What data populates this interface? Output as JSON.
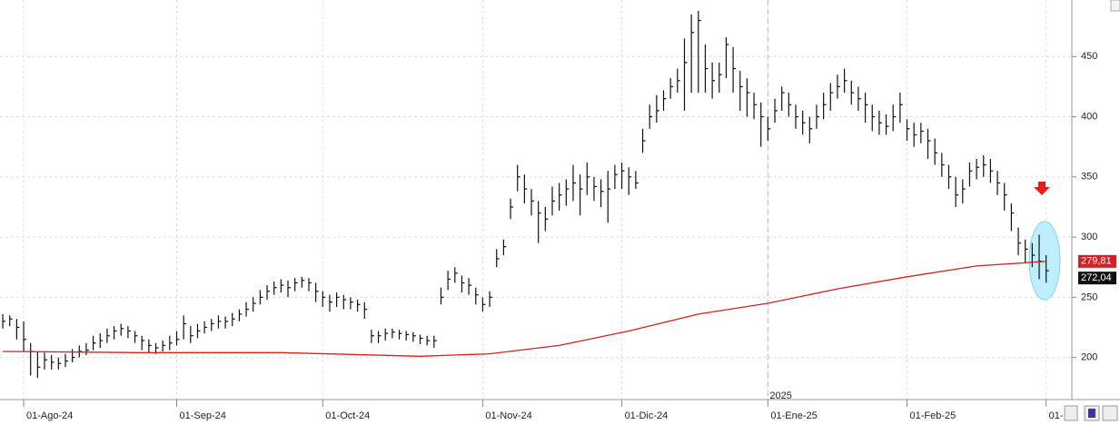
{
  "chart_data": {
    "type": "ohlc",
    "xlim": [
      -0.4,
      153.7
    ],
    "ylim": [
      165,
      497
    ],
    "yticks": [
      200,
      250,
      300,
      350,
      400,
      450
    ],
    "xticks": [
      {
        "value": 3,
        "label": "01-Ago-24"
      },
      {
        "value": 25,
        "label": "01-Sep-24"
      },
      {
        "value": 46,
        "label": "01-Oct-24"
      },
      {
        "value": 69,
        "label": "01-Nov-24"
      },
      {
        "value": 89,
        "label": "01-Dic-24"
      },
      {
        "value": 110,
        "label": "01-Ene-25"
      },
      {
        "value": 130,
        "label": "01-Feb-25"
      },
      {
        "value": 150,
        "label": "01-"
      }
    ],
    "year_marker": {
      "value": 110,
      "label": "2025"
    },
    "grid": true,
    "color": "#111111",
    "high": [
      236,
      235,
      232,
      230,
      212,
      205,
      204,
      202,
      200,
      203,
      207,
      210,
      212,
      218,
      220,
      224,
      226,
      228,
      226,
      222,
      218,
      215,
      212,
      214,
      218,
      222,
      235,
      226,
      228,
      230,
      232,
      235,
      234,
      237,
      240,
      246,
      250,
      256,
      260,
      263,
      265,
      264,
      266,
      267,
      266,
      262,
      255,
      252,
      254,
      252,
      250,
      248,
      246,
      223,
      222,
      224,
      224,
      223,
      222,
      221,
      219,
      218,
      218,
      258,
      272,
      275,
      268,
      266,
      258,
      250,
      255,
      290,
      298,
      332,
      360,
      352,
      340,
      330,
      325,
      342,
      345,
      348,
      360,
      352,
      362,
      350,
      348,
      355,
      360,
      362,
      358,
      355,
      390,
      410,
      418,
      422,
      432,
      440,
      465,
      485,
      488,
      460,
      445,
      445,
      466,
      458,
      438,
      432,
      420,
      412,
      400,
      415,
      425,
      420,
      410,
      405,
      400,
      410,
      420,
      428,
      435,
      440,
      430,
      425,
      420,
      410,
      405,
      402,
      410,
      420,
      398,
      395,
      395,
      390,
      382,
      370,
      360,
      350,
      348,
      362,
      365,
      368,
      365,
      355,
      345,
      328,
      308,
      298,
      295,
      302,
      285
    ],
    "low": [
      224,
      226,
      215,
      205,
      185,
      183,
      190,
      190,
      190,
      192,
      196,
      200,
      202,
      206,
      208,
      212,
      215,
      218,
      216,
      212,
      206,
      204,
      203,
      205,
      206,
      210,
      215,
      212,
      216,
      220,
      222,
      224,
      224,
      226,
      230,
      234,
      238,
      244,
      248,
      252,
      254,
      250,
      255,
      258,
      255,
      246,
      242,
      238,
      242,
      240,
      240,
      238,
      232,
      212,
      212,
      214,
      216,
      215,
      214,
      213,
      211,
      210,
      208,
      244,
      256,
      262,
      254,
      252,
      244,
      238,
      242,
      275,
      285,
      315,
      338,
      328,
      318,
      295,
      305,
      318,
      322,
      326,
      330,
      318,
      335,
      330,
      325,
      312,
      340,
      340,
      335,
      340,
      370,
      390,
      395,
      405,
      415,
      420,
      405,
      420,
      420,
      420,
      415,
      420,
      432,
      420,
      405,
      400,
      398,
      375,
      380,
      395,
      405,
      400,
      390,
      385,
      378,
      390,
      398,
      405,
      415,
      420,
      410,
      405,
      395,
      388,
      385,
      385,
      388,
      395,
      380,
      375,
      378,
      365,
      360,
      350,
      340,
      325,
      328,
      342,
      348,
      350,
      345,
      335,
      322,
      305,
      285,
      278,
      275,
      265,
      262
    ],
    "close": [
      230,
      232,
      225,
      215,
      205,
      192,
      198,
      196,
      195,
      197,
      200,
      205,
      206,
      212,
      214,
      218,
      222,
      224,
      222,
      218,
      214,
      210,
      208,
      210,
      212,
      215,
      228,
      218,
      222,
      225,
      228,
      230,
      230,
      232,
      236,
      240,
      245,
      250,
      255,
      258,
      260,
      258,
      262,
      264,
      262,
      255,
      250,
      246,
      250,
      248,
      246,
      244,
      240,
      218,
      218,
      220,
      221,
      220,
      219,
      218,
      216,
      214,
      214,
      250,
      265,
      270,
      262,
      260,
      252,
      244,
      250,
      282,
      292,
      325,
      350,
      340,
      330,
      320,
      315,
      330,
      335,
      340,
      345,
      340,
      350,
      342,
      338,
      340,
      352,
      355,
      350,
      345,
      380,
      400,
      405,
      415,
      425,
      430,
      445,
      470,
      480,
      440,
      430,
      435,
      460,
      440,
      425,
      420,
      410,
      400,
      390,
      405,
      420,
      410,
      400,
      395,
      390,
      400,
      410,
      420,
      425,
      430,
      420,
      415,
      410,
      400,
      395,
      392,
      400,
      410,
      390,
      385,
      388,
      380,
      370,
      360,
      350,
      335,
      340,
      355,
      358,
      360,
      355,
      345,
      335,
      320,
      295,
      290,
      285,
      280,
      272.04
    ],
    "ma": {
      "color": "#d42020",
      "x": [
        0,
        20,
        40,
        60,
        70,
        80,
        90,
        100,
        110,
        120,
        130,
        140,
        150
      ],
      "values": [
        205,
        204,
        204,
        201,
        203,
        210,
        222,
        236,
        245,
        257,
        267,
        276,
        279.81
      ]
    },
    "ma_last": {
      "value": 279.81,
      "label": "279,81"
    },
    "last_price": {
      "value": 272.04,
      "label": "272,04"
    }
  }
}
